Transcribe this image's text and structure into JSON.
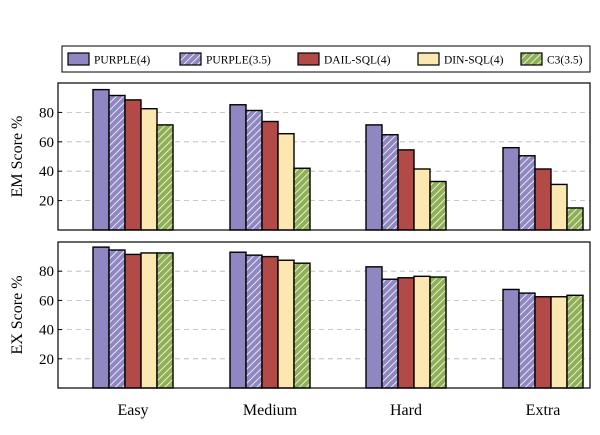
{
  "chart_data": {
    "type": "bar",
    "categories": [
      "Easy",
      "Medium",
      "Hard",
      "Extra"
    ],
    "legend": [
      {
        "name": "PURPLE(4)",
        "color": "#8e87c1",
        "pattern": "solid"
      },
      {
        "name": "PURPLE(3.5)",
        "color": "#8e87c1",
        "pattern": "hatch"
      },
      {
        "name": "DAIL-SQL(4)",
        "color": "#b24b48",
        "pattern": "solid"
      },
      {
        "name": "DIN-SQL(4)",
        "color": "#fde7b0",
        "pattern": "solid"
      },
      {
        "name": "C3(3.5)",
        "color": "#8fb055",
        "pattern": "hatch"
      }
    ],
    "panels": [
      {
        "ylabel": "EM Score %",
        "ylim": [
          0,
          100
        ],
        "yticks": [
          20,
          40,
          60,
          80
        ],
        "grid": true,
        "series": [
          {
            "name": "PURPLE(4)",
            "values": [
              95.5,
              85.2,
              71.5,
              56.0
            ]
          },
          {
            "name": "PURPLE(3.5)",
            "values": [
              91.5,
              81.3,
              64.8,
              50.5
            ]
          },
          {
            "name": "DAIL-SQL(4)",
            "values": [
              88.5,
              73.8,
              54.5,
              41.5
            ]
          },
          {
            "name": "DIN-SQL(4)",
            "values": [
              82.5,
              65.5,
              41.5,
              31.0
            ]
          },
          {
            "name": "C3(3.5)",
            "values": [
              71.5,
              42.0,
              33.0,
              15.0
            ]
          }
        ]
      },
      {
        "ylabel": "EX Score %",
        "ylim": [
          0,
          100
        ],
        "yticks": [
          20,
          40,
          60,
          80
        ],
        "grid": true,
        "series": [
          {
            "name": "PURPLE(4)",
            "values": [
              96.5,
              93.0,
              83.0,
              67.5
            ]
          },
          {
            "name": "PURPLE(3.5)",
            "values": [
              94.5,
              91.0,
              74.5,
              65.0
            ]
          },
          {
            "name": "DAIL-SQL(4)",
            "values": [
              91.5,
              90.0,
              75.5,
              62.5
            ]
          },
          {
            "name": "DIN-SQL(4)",
            "values": [
              92.5,
              87.5,
              76.5,
              62.5
            ]
          },
          {
            "name": "C3(3.5)",
            "values": [
              92.5,
              85.5,
              76.0,
              63.5
            ]
          }
        ]
      }
    ]
  }
}
